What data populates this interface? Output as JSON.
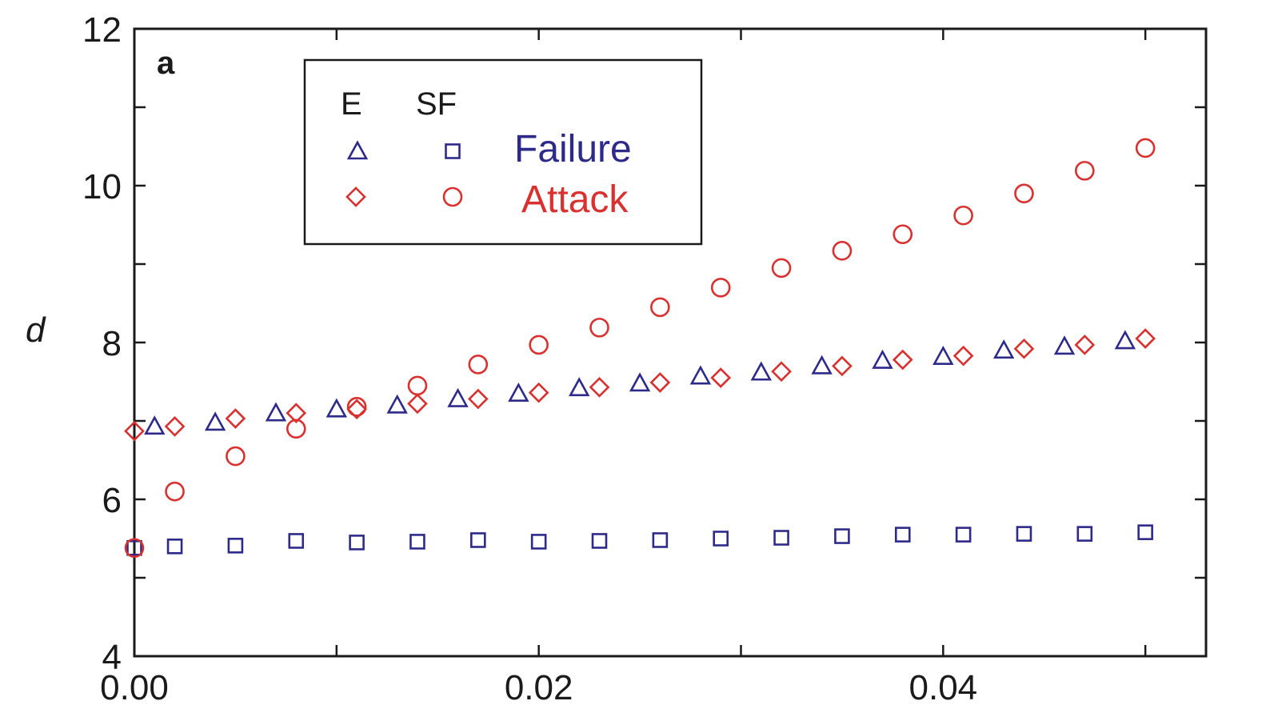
{
  "panel_label": "a",
  "colors": {
    "failure": "#2e2a8a",
    "attack": "#d9312f",
    "axis": "#1a1a1a"
  },
  "legend": {
    "col_e": "E",
    "col_sf": "SF",
    "failure_label": "Failure",
    "attack_label": "Attack"
  },
  "chart_data": {
    "type": "scatter",
    "xlabel": "",
    "ylabel": "d",
    "xlim": [
      0.0,
      0.053
    ],
    "ylim": [
      4,
      12
    ],
    "x_ticks": [
      "0.00",
      "0.02",
      "0.04"
    ],
    "y_ticks": [
      "4",
      "6",
      "8",
      "10",
      "12"
    ],
    "grid": false,
    "legend_position": "top-left",
    "series": [
      {
        "key": "e_failure",
        "marker": "triangle",
        "color": "#2e2a8a",
        "x": [
          0.001,
          0.004,
          0.007,
          0.01,
          0.013,
          0.016,
          0.019,
          0.022,
          0.025,
          0.028,
          0.031,
          0.034,
          0.037,
          0.04,
          0.043,
          0.046,
          0.049
        ],
        "y": [
          6.93,
          6.98,
          7.1,
          7.15,
          7.2,
          7.28,
          7.35,
          7.42,
          7.48,
          7.57,
          7.62,
          7.7,
          7.77,
          7.82,
          7.9,
          7.95,
          8.02
        ]
      },
      {
        "key": "e_attack",
        "marker": "diamond",
        "color": "#d9312f",
        "x": [
          0.0,
          0.002,
          0.005,
          0.008,
          0.011,
          0.014,
          0.017,
          0.02,
          0.023,
          0.026,
          0.029,
          0.032,
          0.035,
          0.038,
          0.041,
          0.044,
          0.047,
          0.05
        ],
        "y": [
          6.87,
          6.93,
          7.03,
          7.1,
          7.15,
          7.22,
          7.28,
          7.36,
          7.43,
          7.49,
          7.55,
          7.63,
          7.7,
          7.78,
          7.83,
          7.92,
          7.97,
          8.05
        ]
      },
      {
        "key": "sf_failure",
        "marker": "square",
        "color": "#2e2a8a",
        "x": [
          0.0,
          0.002,
          0.005,
          0.008,
          0.011,
          0.014,
          0.017,
          0.02,
          0.023,
          0.026,
          0.029,
          0.032,
          0.035,
          0.038,
          0.041,
          0.044,
          0.047,
          0.05
        ],
        "y": [
          5.38,
          5.4,
          5.41,
          5.47,
          5.45,
          5.46,
          5.48,
          5.46,
          5.47,
          5.48,
          5.5,
          5.51,
          5.53,
          5.55,
          5.55,
          5.56,
          5.56,
          5.58
        ]
      },
      {
        "key": "sf_attack",
        "marker": "circle",
        "color": "#d9312f",
        "x": [
          0.0,
          0.002,
          0.005,
          0.008,
          0.011,
          0.014,
          0.017,
          0.02,
          0.023,
          0.026,
          0.029,
          0.032,
          0.035,
          0.038,
          0.041,
          0.044,
          0.047,
          0.05
        ],
        "y": [
          5.38,
          6.1,
          6.55,
          6.9,
          7.18,
          7.45,
          7.72,
          7.97,
          8.19,
          8.45,
          8.7,
          8.95,
          9.17,
          9.38,
          9.62,
          9.9,
          10.19,
          10.48
        ]
      }
    ]
  }
}
